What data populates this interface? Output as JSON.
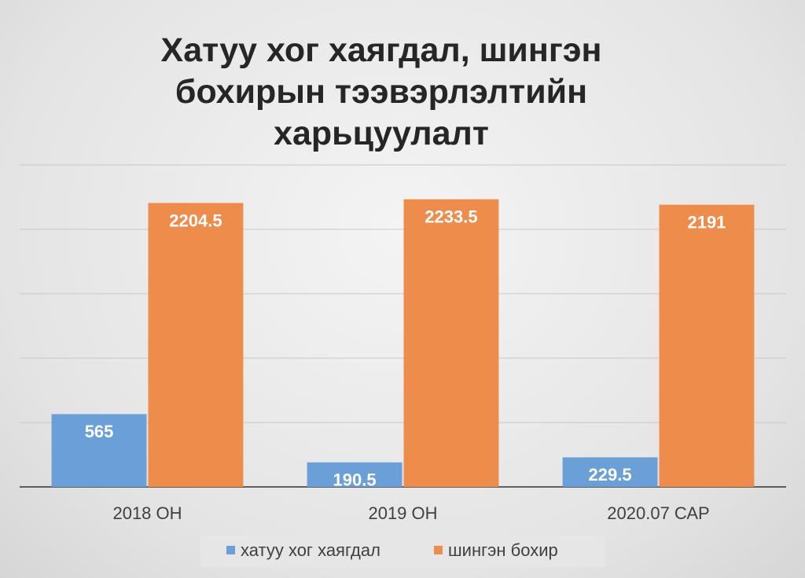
{
  "chart_data": {
    "type": "bar",
    "title": "Хатуу хог хаягдал, шингэн бохирын тээвэрлэлтийн харьцуулалт",
    "categories": [
      "2018 ОН",
      "2019 ОН",
      "2020.07 САР"
    ],
    "series": [
      {
        "name": "хатуу хог хаягдал",
        "color": "#6a9fd8",
        "values": [
          565,
          190.5,
          229.5
        ]
      },
      {
        "name": "шингэн бохир",
        "color": "#ee8c4b",
        "values": [
          2204.5,
          2233.5,
          2191
        ]
      }
    ],
    "ylim": [
      0,
      2500
    ],
    "yticks": [
      0,
      500,
      1000,
      1500,
      2000,
      2500
    ],
    "grid": true,
    "legend": "bottom"
  }
}
